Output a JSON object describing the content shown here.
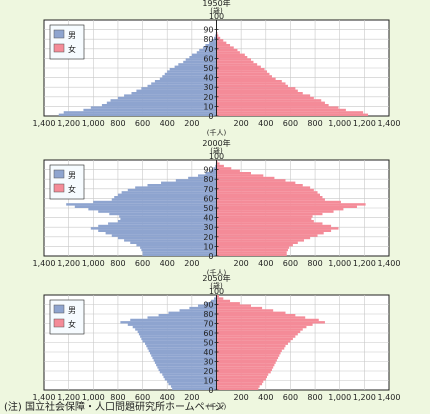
{
  "colors": {
    "background": "#eef7df",
    "plot_background": "#ffffff",
    "male": "#8ea4cf",
    "female": "#f48b98",
    "grid": "#c8c8c8",
    "axis": "#222222"
  },
  "note": "(注) 国立社会保障・人口問題研究所ホームページ",
  "chart_data": [
    {
      "type": "bar",
      "orientation": "horizontal",
      "title": "1950年",
      "age_unit": "(歳)",
      "value_unit": "(千人)",
      "age_ticks": [
        "0",
        "10",
        "20",
        "30",
        "40",
        "50",
        "60",
        "70",
        "80",
        "90",
        "100"
      ],
      "x_tick_labels": [
        "1,400",
        "1,200",
        "1,000",
        "800",
        "600",
        "400",
        "200",
        "",
        "200",
        "400",
        "600",
        "800",
        "1,000",
        "1,200",
        "1,400"
      ],
      "xlim": [
        -1400,
        1400
      ],
      "ylim": [
        0,
        100
      ],
      "grid": true,
      "legend": {
        "position": "top-left",
        "entries": [
          "男",
          "女"
        ]
      },
      "ages": [
        0,
        2.5,
        5,
        7.5,
        10,
        12.5,
        15,
        17.5,
        20,
        22.5,
        25,
        27.5,
        30,
        32.5,
        35,
        37.5,
        40,
        42.5,
        45,
        47.5,
        50,
        52.5,
        55,
        57.5,
        60,
        62.5,
        65,
        67.5,
        70,
        72.5,
        75,
        77.5,
        80,
        82.5,
        85,
        87.5,
        90
      ],
      "series": [
        {
          "name": "男",
          "values": [
            1280,
            1240,
            1080,
            1020,
            930,
            890,
            860,
            800,
            750,
            690,
            650,
            610,
            560,
            530,
            500,
            460,
            440,
            420,
            400,
            380,
            340,
            310,
            270,
            250,
            220,
            200,
            160,
            140,
            110,
            90,
            60,
            40,
            20,
            10,
            5,
            2,
            0
          ]
        },
        {
          "name": "女",
          "values": [
            1230,
            1190,
            1050,
            990,
            910,
            880,
            850,
            790,
            760,
            700,
            660,
            640,
            580,
            560,
            530,
            480,
            450,
            430,
            410,
            390,
            360,
            330,
            300,
            280,
            250,
            230,
            190,
            170,
            140,
            110,
            80,
            55,
            30,
            15,
            8,
            3,
            0
          ]
        }
      ]
    },
    {
      "type": "bar",
      "orientation": "horizontal",
      "title": "2000年",
      "age_unit": "(歳)",
      "value_unit": "(千人)",
      "age_ticks": [
        "0",
        "10",
        "20",
        "30",
        "40",
        "50",
        "60",
        "70",
        "80",
        "90",
        "100"
      ],
      "x_tick_labels": [
        "1,400",
        "1,200",
        "1,000",
        "800",
        "600",
        "400",
        "200",
        "",
        "200",
        "400",
        "600",
        "800",
        "1,000",
        "1,200",
        "1,400"
      ],
      "xlim": [
        -1400,
        1400
      ],
      "ylim": [
        0,
        100
      ],
      "grid": true,
      "legend": {
        "position": "top-left",
        "entries": [
          "男",
          "女"
        ]
      },
      "ages": [
        0,
        2.5,
        5,
        7.5,
        10,
        12.5,
        15,
        17.5,
        20,
        22.5,
        25,
        27.5,
        30,
        32.5,
        35,
        37.5,
        40,
        42.5,
        45,
        47.5,
        50,
        52.5,
        55,
        57.5,
        60,
        62.5,
        65,
        67.5,
        70,
        72.5,
        75,
        77.5,
        80,
        82.5,
        85,
        87.5,
        90,
        92.5,
        95,
        97.5
      ],
      "series": [
        {
          "name": "男",
          "values": [
            600,
            600,
            610,
            620,
            650,
            700,
            750,
            800,
            850,
            900,
            960,
            1020,
            960,
            880,
            800,
            780,
            790,
            870,
            960,
            1040,
            1150,
            1220,
            1000,
            850,
            830,
            800,
            770,
            720,
            660,
            560,
            450,
            330,
            230,
            150,
            90,
            50,
            25,
            10,
            5,
            2
          ]
        },
        {
          "name": "女",
          "values": [
            570,
            570,
            580,
            590,
            620,
            660,
            710,
            760,
            820,
            870,
            930,
            990,
            930,
            860,
            790,
            770,
            780,
            860,
            950,
            1030,
            1140,
            1210,
            1010,
            880,
            860,
            840,
            820,
            790,
            760,
            700,
            640,
            560,
            470,
            380,
            280,
            190,
            120,
            60,
            25,
            8
          ]
        }
      ]
    },
    {
      "type": "bar",
      "orientation": "horizontal",
      "title": "2050年",
      "age_unit": "(歳)",
      "value_unit": "(千人)",
      "age_ticks": [
        "0",
        "10",
        "20",
        "30",
        "40",
        "50",
        "60",
        "70",
        "80",
        "90",
        "100"
      ],
      "x_tick_labels": [
        "1,400",
        "1,200",
        "1,000",
        "800",
        "600",
        "400",
        "200",
        "",
        "200",
        "400",
        "600",
        "800",
        "1,000",
        "1,200",
        "1,400"
      ],
      "xlim": [
        -1400,
        1400
      ],
      "ylim": [
        0,
        100
      ],
      "grid": true,
      "legend": {
        "position": "top-left",
        "entries": [
          "男",
          "女"
        ]
      },
      "ages": [
        0,
        2.5,
        5,
        7.5,
        10,
        12.5,
        15,
        17.5,
        20,
        22.5,
        25,
        27.5,
        30,
        32.5,
        35,
        37.5,
        40,
        42.5,
        45,
        47.5,
        50,
        52.5,
        55,
        57.5,
        60,
        62.5,
        65,
        67.5,
        70,
        72.5,
        75,
        77.5,
        80,
        82.5,
        85,
        87.5,
        90,
        92.5,
        95,
        97.5
      ],
      "series": [
        {
          "name": "男",
          "values": [
            360,
            370,
            390,
            400,
            420,
            430,
            440,
            460,
            470,
            480,
            490,
            500,
            510,
            520,
            530,
            540,
            550,
            560,
            570,
            580,
            600,
            610,
            620,
            630,
            640,
            660,
            680,
            720,
            780,
            700,
            560,
            470,
            390,
            300,
            220,
            150,
            90,
            45,
            20,
            6
          ]
        },
        {
          "name": "女",
          "values": [
            340,
            350,
            370,
            380,
            400,
            410,
            420,
            440,
            450,
            460,
            470,
            480,
            490,
            500,
            510,
            520,
            530,
            550,
            560,
            580,
            600,
            620,
            640,
            660,
            680,
            700,
            730,
            780,
            880,
            830,
            720,
            640,
            560,
            460,
            370,
            280,
            190,
            110,
            55,
            20
          ]
        }
      ]
    }
  ]
}
